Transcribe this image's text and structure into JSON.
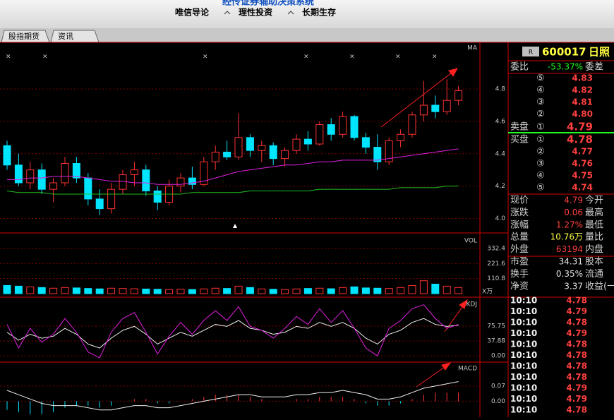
{
  "header": {
    "title": "经传证券辅助决策系统",
    "menu": [
      "唯信导论",
      "理性投资",
      "长期生存"
    ]
  },
  "tabs": [
    "股指期货",
    "资讯"
  ],
  "chart_data": [
    {
      "type": "candlestick",
      "title": "MA",
      "up_color": "#ff3232",
      "down_color": "#00e5ff",
      "open": [
        4.45,
        4.33,
        4.22,
        4.3,
        4.18,
        4.22,
        4.34,
        4.25,
        4.12,
        4.06,
        4.18,
        4.27,
        4.3,
        4.17,
        4.1,
        4.2,
        4.25,
        4.21,
        4.35,
        4.41,
        4.38,
        4.5,
        4.42,
        4.45,
        4.37,
        4.42,
        4.49,
        4.46,
        4.58,
        4.52,
        4.63,
        4.5,
        4.44,
        4.35,
        4.48,
        4.52,
        4.64,
        4.7,
        4.66,
        4.73
      ],
      "high": [
        4.48,
        4.4,
        4.35,
        4.34,
        4.25,
        4.38,
        4.38,
        4.28,
        4.18,
        4.22,
        4.3,
        4.35,
        4.33,
        4.2,
        4.24,
        4.28,
        4.32,
        4.38,
        4.45,
        4.48,
        4.65,
        4.52,
        4.48,
        4.47,
        4.44,
        4.52,
        4.54,
        4.6,
        4.62,
        4.66,
        4.64,
        4.53,
        4.52,
        4.5,
        4.55,
        4.66,
        4.85,
        4.76,
        4.86,
        4.82
      ],
      "low": [
        4.3,
        4.2,
        4.18,
        4.15,
        4.1,
        4.2,
        4.22,
        4.08,
        4.02,
        4.03,
        4.15,
        4.2,
        4.14,
        4.05,
        4.08,
        4.16,
        4.18,
        4.2,
        4.3,
        4.36,
        4.36,
        4.38,
        4.35,
        4.33,
        4.32,
        4.4,
        4.42,
        4.45,
        4.48,
        4.5,
        4.48,
        4.4,
        4.3,
        4.33,
        4.44,
        4.5,
        4.6,
        4.62,
        4.64,
        4.7
      ],
      "close": [
        4.33,
        4.22,
        4.3,
        4.18,
        4.22,
        4.34,
        4.25,
        4.12,
        4.06,
        4.18,
        4.27,
        4.3,
        4.17,
        4.1,
        4.2,
        4.25,
        4.21,
        4.35,
        4.41,
        4.38,
        4.5,
        4.42,
        4.45,
        4.37,
        4.42,
        4.49,
        4.46,
        4.58,
        4.52,
        4.63,
        4.5,
        4.44,
        4.35,
        4.48,
        4.52,
        4.64,
        4.7,
        4.66,
        4.73,
        4.79
      ],
      "series": [
        {
          "color": "#e020e0",
          "values": [
            4.24,
            4.24,
            4.25,
            4.25,
            4.26,
            4.26,
            4.26,
            4.25,
            4.24,
            4.23,
            4.23,
            4.22,
            4.22,
            4.21,
            4.21,
            4.21,
            4.22,
            4.23,
            4.25,
            4.27,
            4.29,
            4.3,
            4.31,
            4.32,
            4.33,
            4.33,
            4.34,
            4.35,
            4.35,
            4.36,
            4.36,
            4.36,
            4.36,
            4.37,
            4.38,
            4.39,
            4.4,
            4.41,
            4.42,
            4.43
          ]
        },
        {
          "color": "#20c020",
          "values": [
            4.17,
            4.16,
            4.16,
            4.16,
            4.15,
            4.15,
            4.15,
            4.15,
            4.15,
            4.15,
            4.15,
            4.15,
            4.15,
            4.15,
            4.15,
            4.15,
            4.16,
            4.16,
            4.16,
            4.16,
            4.16,
            4.17,
            4.17,
            4.17,
            4.17,
            4.17,
            4.17,
            4.18,
            4.18,
            4.18,
            4.18,
            4.18,
            4.18,
            4.18,
            4.19,
            4.19,
            4.19,
            4.19,
            4.2,
            4.2
          ]
        }
      ],
      "ylim": [
        3.91,
        5.08
      ],
      "yticks": [
        4.8,
        4.6,
        4.4,
        4.2,
        {
          "value": 4,
          "label": "4.0"
        }
      ]
    },
    {
      "type": "bar",
      "title": "VOL",
      "unit": "X万",
      "values": [
        60,
        55,
        50,
        45,
        40,
        45,
        42,
        38,
        35,
        40,
        38,
        36,
        34,
        32,
        30,
        33,
        30,
        35,
        40,
        38,
        55,
        45,
        35,
        32,
        30,
        35,
        38,
        40,
        36,
        45,
        50,
        42,
        40,
        38,
        45,
        60,
        95,
        70,
        55,
        45
      ],
      "ylim": [
        0,
        420
      ],
      "yticks": [
        332.4,
        221.6,
        110.8
      ]
    },
    {
      "type": "line",
      "title": "KDJ",
      "series": [
        {
          "color": "#f0f0f0",
          "values": [
            60,
            40,
            55,
            45,
            50,
            70,
            55,
            30,
            20,
            45,
            65,
            75,
            55,
            30,
            45,
            60,
            50,
            65,
            80,
            75,
            90,
            70,
            65,
            55,
            60,
            75,
            70,
            85,
            75,
            85,
            70,
            45,
            30,
            55,
            65,
            85,
            95,
            80,
            75,
            78
          ]
        },
        {
          "color": "#e020e0",
          "values": [
            80,
            20,
            70,
            35,
            55,
            95,
            60,
            10,
            -5,
            60,
            95,
            110,
            60,
            5,
            50,
            85,
            55,
            90,
            115,
            90,
            125,
            75,
            65,
            45,
            70,
            100,
            80,
            120,
            85,
            115,
            70,
            20,
            0,
            70,
            90,
            120,
            130,
            95,
            70,
            80
          ]
        }
      ],
      "ylim": [
        -14,
        142
      ],
      "yticks": [
        75.75,
        37.88,
        {
          "value": 0,
          "label": "0.00"
        }
      ]
    },
    {
      "type": "macd",
      "title": "MACD",
      "up_color": "#ff3232",
      "down_color": "#00e5ff",
      "series": [
        {
          "color": "#f0f0f0",
          "values": [
            0.05,
            0.03,
            0.01,
            -0.01,
            -0.02,
            -0.02,
            -0.02,
            -0.03,
            -0.04,
            -0.04,
            -0.03,
            -0.02,
            -0.02,
            -0.03,
            -0.03,
            -0.02,
            -0.01,
            0.0,
            0.01,
            0.02,
            0.03,
            0.03,
            0.02,
            0.02,
            0.02,
            0.03,
            0.03,
            0.04,
            0.04,
            0.05,
            0.04,
            0.03,
            0.01,
            0.01,
            0.02,
            0.04,
            0.06,
            0.07,
            0.08,
            0.09
          ]
        }
      ],
      "values": [
        -0.04,
        -0.05,
        -0.06,
        -0.06,
        -0.05,
        -0.03,
        -0.02,
        -0.02,
        -0.03,
        -0.02,
        0.0,
        0.01,
        0.01,
        -0.01,
        -0.01,
        0.0,
        0.01,
        0.02,
        0.03,
        0.03,
        0.03,
        0.02,
        0.01,
        0.0,
        0.0,
        0.01,
        0.01,
        0.02,
        0.02,
        0.02,
        0.01,
        -0.01,
        -0.02,
        -0.02,
        -0.01,
        0.01,
        0.03,
        0.04,
        0.04,
        0.04
      ],
      "ylim": [
        -0.07,
        0.17
      ],
      "yticks": [
        0.07,
        {
          "value": 0,
          "label": "0.00"
        }
      ]
    }
  ],
  "quote": {
    "tag": "R",
    "code": "600017",
    "name": "日照",
    "ratio_label": "委比",
    "ratio": "-53.37%",
    "diff_label": "委差",
    "sell_label": "卖盘",
    "buy_label": "买盘",
    "sell": [
      {
        "level": "⑤",
        "price": "4.83"
      },
      {
        "level": "④",
        "price": "4.82"
      },
      {
        "level": "③",
        "price": "4.81"
      },
      {
        "level": "②",
        "price": "4.80"
      },
      {
        "level": "①",
        "price": "4.79"
      }
    ],
    "buy": [
      {
        "level": "①",
        "price": "4.78"
      },
      {
        "level": "②",
        "price": "4.77"
      },
      {
        "level": "③",
        "price": "4.76"
      },
      {
        "level": "④",
        "price": "4.75"
      },
      {
        "level": "⑤",
        "price": "4.74"
      }
    ],
    "stats": [
      {
        "label": "现价",
        "value": "4.79",
        "label2": "今开",
        "color": "#ff4040"
      },
      {
        "label": "涨跌",
        "value": "0.06",
        "label2": "最高",
        "color": "#ff4040"
      },
      {
        "label": "涨幅",
        "value": "1.27%",
        "label2": "最低",
        "color": "#ff4040"
      },
      {
        "label": "总量",
        "value": "10.76万",
        "label2": "量比",
        "color": "#ffff40"
      },
      {
        "label": "外盘",
        "value": "63194",
        "label2": "内盘",
        "color": "#ff4040"
      },
      {
        "label": "市盈",
        "value": "34.31",
        "label2": "股本",
        "color": "#e0e0e0"
      },
      {
        "label": "换手",
        "value": "0.35%",
        "label2": "流通",
        "color": "#e0e0e0"
      },
      {
        "label": "净资",
        "value": "3.37",
        "label2": "收益(一",
        "color": "#e0e0e0"
      }
    ],
    "ticks": [
      {
        "time": "10:10",
        "price": "4.78"
      },
      {
        "time": "10:10",
        "price": "4.79"
      },
      {
        "time": "10:10",
        "price": "4.78"
      },
      {
        "time": "10:10",
        "price": "4.79"
      },
      {
        "time": "10:10",
        "price": "4.78"
      },
      {
        "time": "10:10",
        "price": "4.78"
      },
      {
        "time": "10:10",
        "price": "4.78"
      },
      {
        "time": "10:10",
        "price": "4.78"
      },
      {
        "time": "10:10",
        "price": "4.79"
      },
      {
        "time": "10:10",
        "price": "4.79"
      },
      {
        "time": "10:10",
        "price": "4.78"
      }
    ]
  }
}
